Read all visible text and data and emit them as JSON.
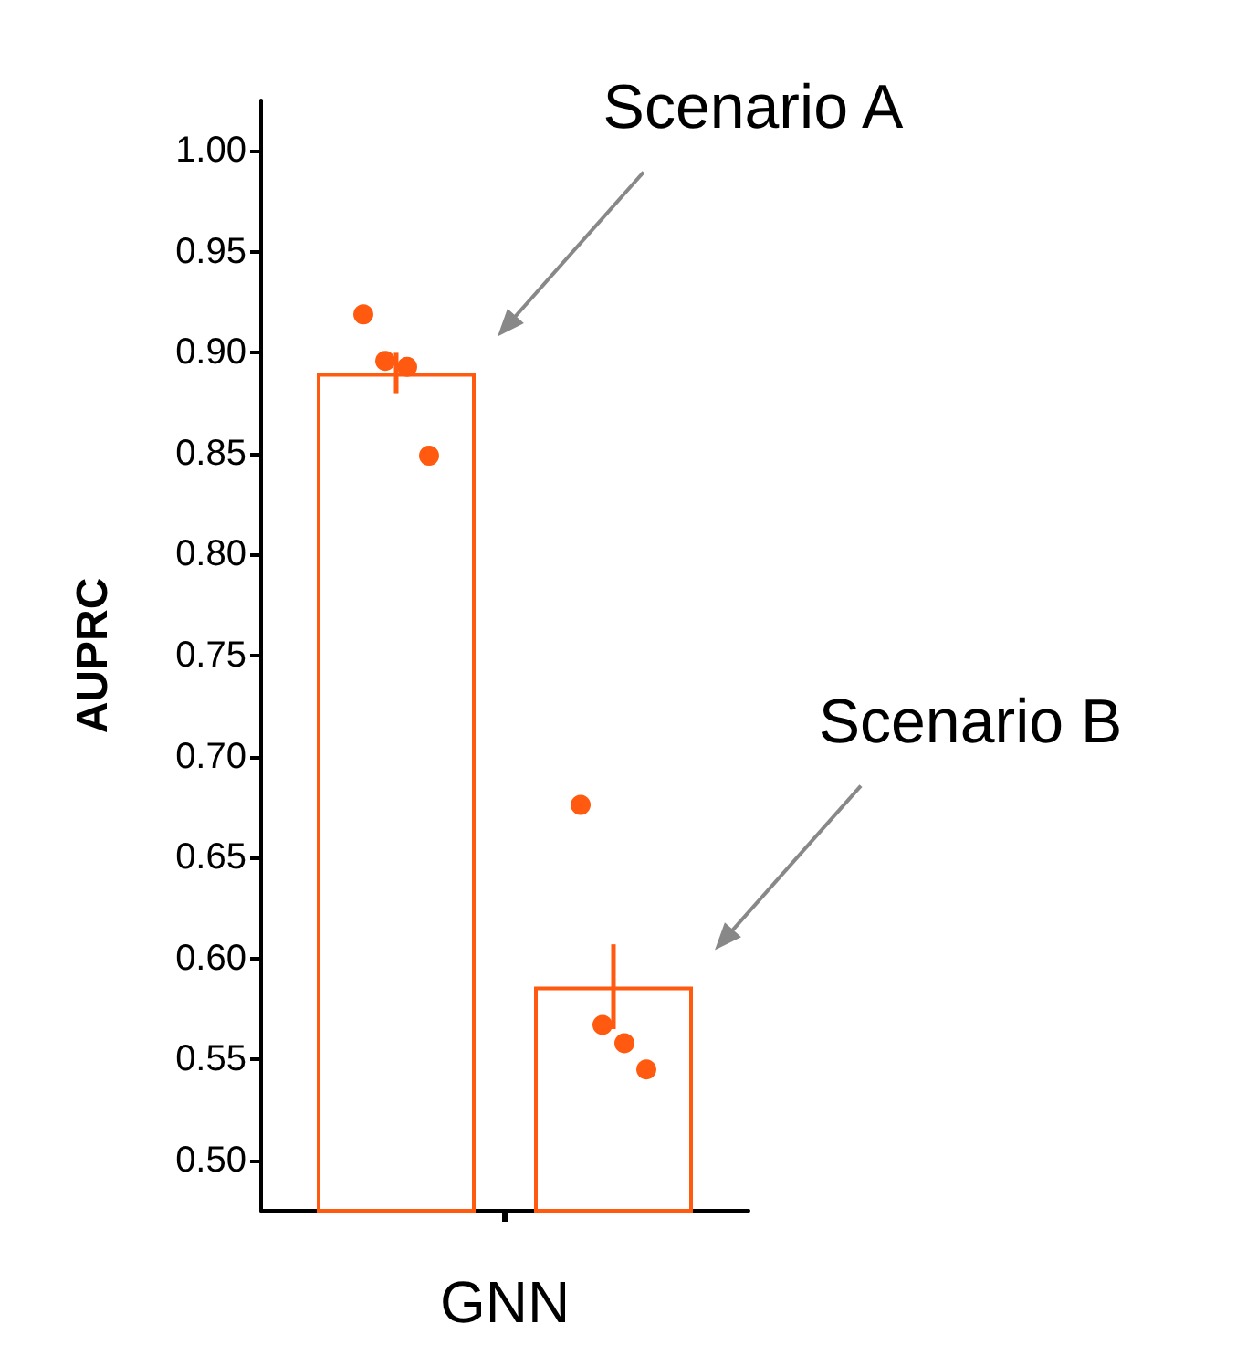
{
  "chart_data": {
    "type": "bar",
    "ylabel": "AUPRC",
    "categories": [
      "GNN"
    ],
    "series": [
      {
        "name": "Scenario A",
        "color": "#ff5a0f",
        "values": [
          0.89
        ],
        "errors": [
          0.01
        ]
      },
      {
        "name": "Scenario B",
        "color": "#ff5a0f",
        "values": [
          0.586
        ],
        "errors": [
          0.021
        ]
      },
      {
        "type": "scatter",
        "color": "#ff5a0f",
        "x": [
          "GNN",
          "GNN",
          "GNN",
          "GNN"
        ],
        "values": [
          0.919,
          0.896,
          0.893,
          0.849
        ]
      },
      {
        "type": "scatter",
        "color": "#ff5a0f",
        "x": [
          "GNN",
          "GNN",
          "GNN",
          "GNN"
        ],
        "values": [
          0.676,
          0.567,
          0.558,
          0.545
        ]
      }
    ],
    "ylim": [
      0.475,
      1.025
    ],
    "yticks": [
      {
        "value": 0.5,
        "label": "0.50"
      },
      {
        "value": 0.55,
        "label": "0.55"
      },
      {
        "value": 0.6,
        "label": "0.60"
      },
      {
        "value": 0.65,
        "label": "0.65"
      },
      {
        "value": 0.7,
        "label": "0.70"
      },
      {
        "value": 0.75,
        "label": "0.75"
      },
      {
        "value": 0.8,
        "label": "0.80"
      },
      {
        "value": 0.85,
        "label": "0.85"
      },
      {
        "value": 0.9,
        "label": "0.90"
      },
      {
        "value": 0.95,
        "label": "0.95"
      },
      {
        "value": 1.0,
        "label": "1.00"
      }
    ]
  }
}
